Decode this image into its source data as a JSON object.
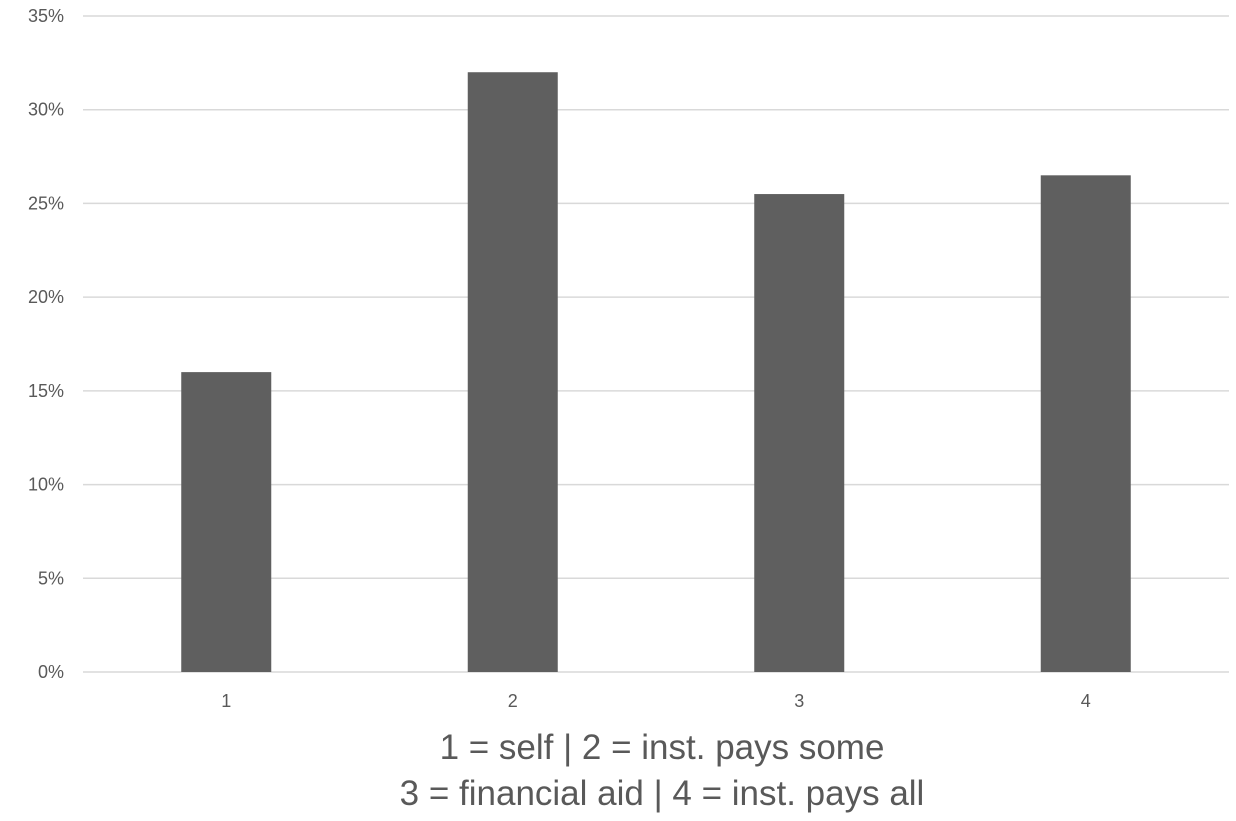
{
  "chart_data": {
    "type": "bar",
    "categories": [
      "1",
      "2",
      "3",
      "4"
    ],
    "values": [
      16,
      32,
      25.5,
      26.5
    ],
    "ylim": [
      0,
      35
    ],
    "yticks": [
      0,
      5,
      10,
      15,
      20,
      25,
      30,
      35
    ],
    "ytick_labels": [
      "0%",
      "5%",
      "10%",
      "15%",
      "20%",
      "25%",
      "30%",
      "35%"
    ],
    "xlabel_lines": [
      "1 = self | 2 = inst. pays some",
      "3 = financial aid | 4 = inst. pays all"
    ],
    "grid": true,
    "legend": "none",
    "bar_color": "#5f5f5f",
    "grid_color": "#d9d9d9"
  }
}
